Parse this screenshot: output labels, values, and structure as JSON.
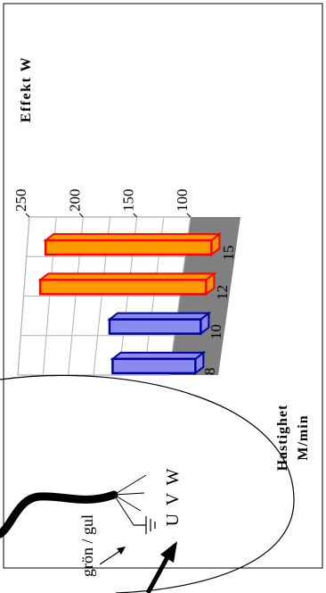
{
  "chart_data": {
    "type": "bar",
    "orientation": "3d-horizontal",
    "title": "",
    "ylabel": "Effekt W",
    "xlabel": "Hastighet M/min",
    "xlabel_lines": [
      "Hastighet",
      "M/min"
    ],
    "categories": [
      "8",
      "10",
      "12",
      "15"
    ],
    "values": [
      172,
      180,
      251,
      251
    ],
    "bar_colors": [
      "#8a8aef",
      "#8a8aef",
      "#ff9a00",
      "#ff9a00"
    ],
    "bar_edge_colors": [
      "#0000a0",
      "#0000a0",
      "#ff0000",
      "#ff0000"
    ],
    "value_axis_ticks": [
      100,
      150,
      200,
      250
    ],
    "ylim": [
      100,
      250
    ],
    "grid": true
  },
  "wiring": {
    "phase_label": "U V W",
    "ground_label": "grön / gul"
  },
  "colors": {
    "floor": "#808080",
    "grid": "#b0b0b0",
    "border": "#000000"
  }
}
